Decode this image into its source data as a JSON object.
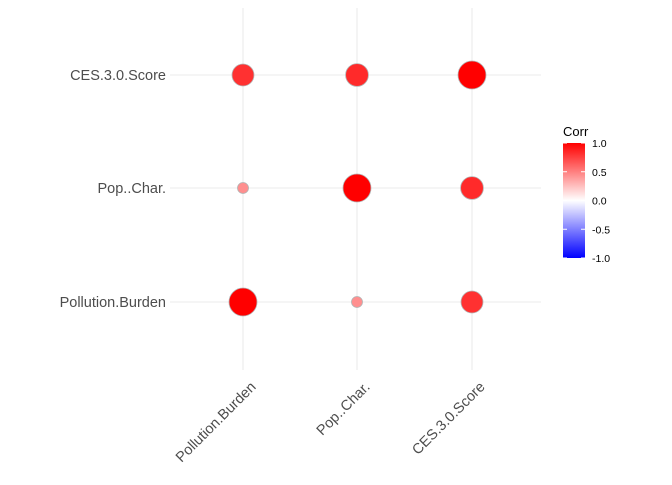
{
  "chart_data": {
    "type": "correlation-bubble",
    "x_categories": [
      "Pollution.Burden",
      "Pop..Char.",
      "CES.3.0.Score"
    ],
    "y_categories": [
      "Pollution.Burden",
      "Pop..Char.",
      "CES.3.0.Score"
    ],
    "cells": [
      {
        "x": "Pollution.Burden",
        "y": "CES.3.0.Score",
        "corr": 0.78
      },
      {
        "x": "Pop..Char.",
        "y": "CES.3.0.Score",
        "corr": 0.81
      },
      {
        "x": "CES.3.0.Score",
        "y": "CES.3.0.Score",
        "corr": 1.0
      },
      {
        "x": "Pollution.Burden",
        "y": "Pop..Char.",
        "corr": 0.38
      },
      {
        "x": "Pop..Char.",
        "y": "Pop..Char.",
        "corr": 1.0
      },
      {
        "x": "CES.3.0.Score",
        "y": "Pop..Char.",
        "corr": 0.81
      },
      {
        "x": "Pollution.Burden",
        "y": "Pollution.Burden",
        "corr": 1.0
      },
      {
        "x": "Pop..Char.",
        "y": "Pollution.Burden",
        "corr": 0.38
      },
      {
        "x": "CES.3.0.Score",
        "y": "Pollution.Burden",
        "corr": 0.78
      }
    ],
    "legend": {
      "title": "Corr",
      "ticks": [
        "1.0",
        "0.5",
        "0.0",
        "-0.5",
        "-1.0"
      ],
      "tick_values": [
        1.0,
        0.5,
        0.0,
        -0.5,
        -1.0
      ],
      "low_color": "#0000ff",
      "mid_color": "#ffffff",
      "high_color": "#ff0000",
      "position": "right"
    },
    "grid": true
  }
}
